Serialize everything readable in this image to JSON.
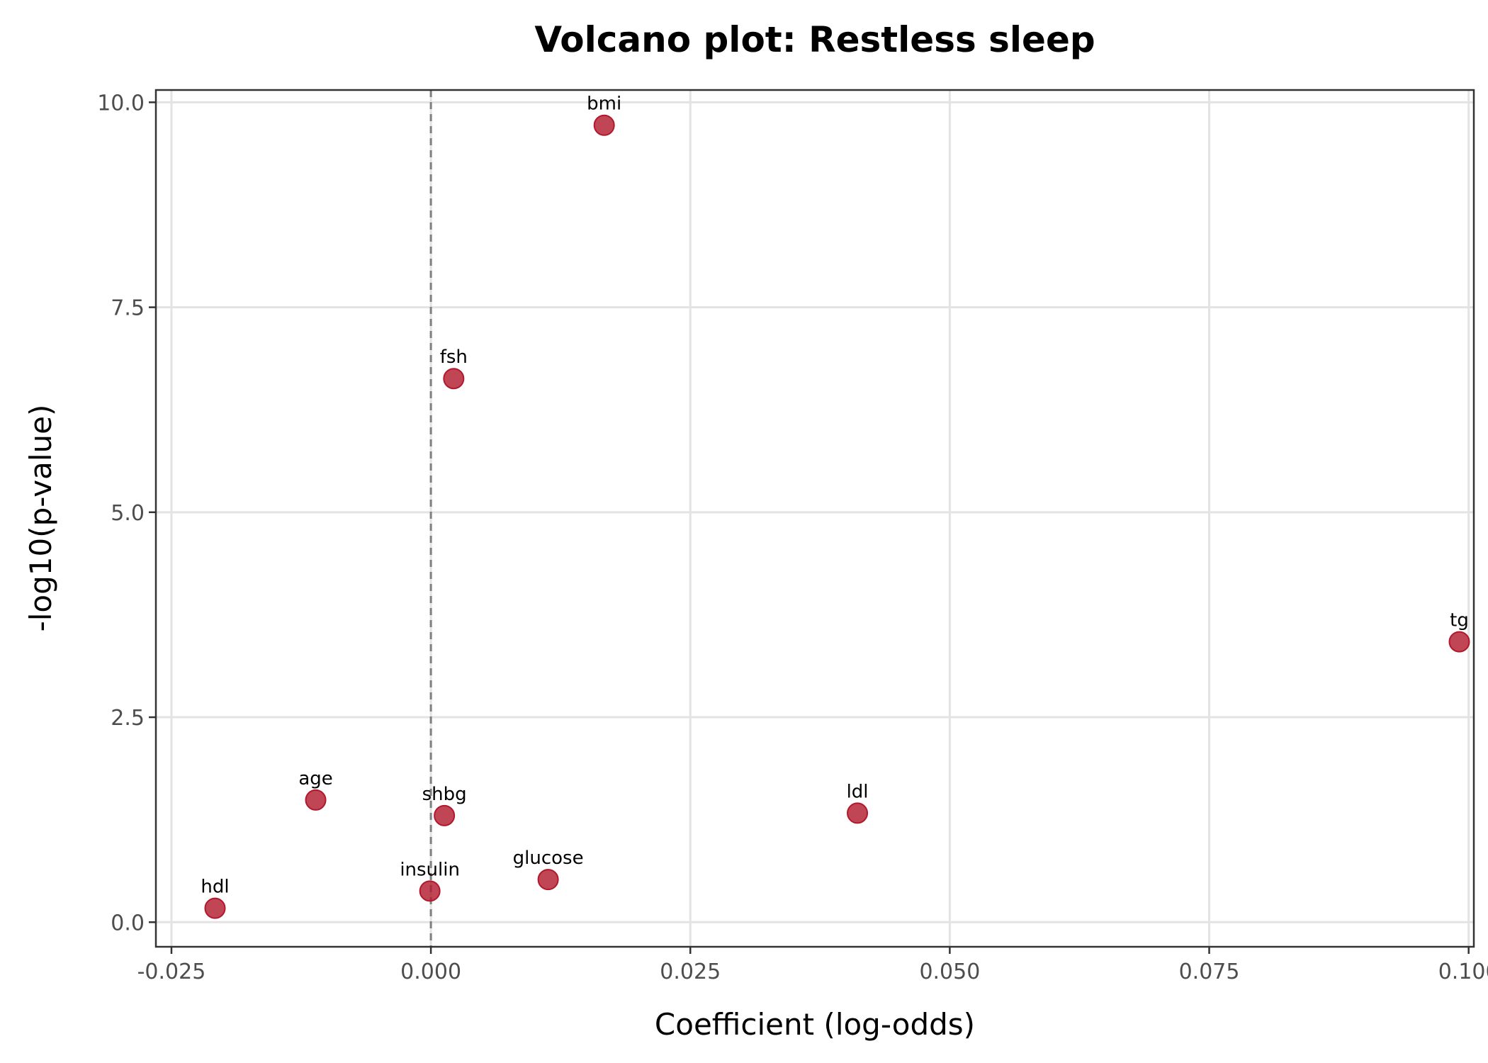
{
  "chart_data": {
    "type": "scatter",
    "title": "Volcano plot: Restless sleep",
    "xlabel": "Coefficient (log-odds)",
    "ylabel": "-log10(p-value)",
    "xlim": [
      -0.0265,
      0.1005
    ],
    "ylim": [
      -0.3,
      10.15
    ],
    "x_ticks": [
      -0.025,
      0.0,
      0.025,
      0.05,
      0.075,
      0.1
    ],
    "x_tick_labels": [
      "-0.025",
      "0.000",
      "0.025",
      "0.050",
      "0.075",
      "0.100"
    ],
    "y_ticks": [
      0.0,
      2.5,
      5.0,
      7.5,
      10.0
    ],
    "y_tick_labels": [
      "0.0",
      "2.5",
      "5.0",
      "7.5",
      "10.0"
    ],
    "reference_line_x": 0.0,
    "grid": true,
    "point_color": "#b2182b",
    "points": [
      {
        "label": "bmi",
        "x": 0.0167,
        "y": 9.72
      },
      {
        "label": "fsh",
        "x": 0.0022,
        "y": 6.63
      },
      {
        "label": "tg",
        "x": 0.0991,
        "y": 3.42
      },
      {
        "label": "age",
        "x": -0.0111,
        "y": 1.49
      },
      {
        "label": "shbg",
        "x": 0.0013,
        "y": 1.3
      },
      {
        "label": "ldl",
        "x": 0.0411,
        "y": 1.33
      },
      {
        "label": "glucose",
        "x": 0.0113,
        "y": 0.52
      },
      {
        "label": "insulin",
        "x": -0.0001,
        "y": 0.38
      },
      {
        "label": "hdl",
        "x": -0.0208,
        "y": 0.17
      }
    ]
  }
}
